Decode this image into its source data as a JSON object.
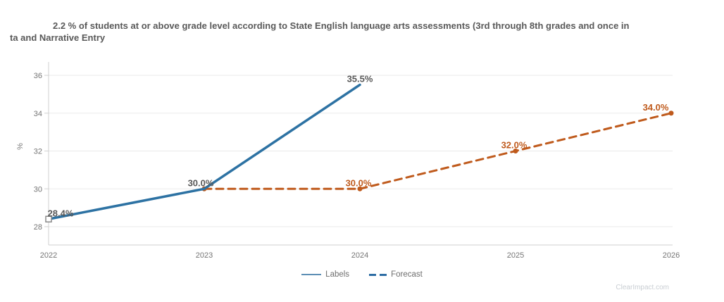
{
  "title": {
    "line1": "2.2 % of students at or above grade level according to State English language arts assessments (3rd through 8th grades and once in",
    "line2": "ta and Narrative Entry"
  },
  "watermark": "ClearImpact.com",
  "legend": [
    {
      "label": "Labels",
      "swatch_color": "#5d8fb5",
      "style": "solid"
    },
    {
      "label": "Forecast",
      "swatch_color": "#2e6da4",
      "style": "dashed"
    }
  ],
  "colors": {
    "labels_line": "#2d72a3",
    "forecast_line": "#bf5a1c",
    "gray_label": "#595959",
    "tick_text": "#757575",
    "gridline": "#eaeaea",
    "axis": "#cfcfcf",
    "marker_square_stroke": "#8a8a8a"
  },
  "chart_data": {
    "type": "line",
    "title": "2.2 % of students at or above grade level according to State English language arts assessments (3rd through 8th grades and once in ta and Narrative Entry",
    "xlabel": "",
    "ylabel": "%",
    "x": [
      2022,
      2023,
      2024,
      2025,
      2026
    ],
    "yticks": [
      28,
      30,
      32,
      34,
      36
    ],
    "ylim": [
      27,
      36.7
    ],
    "grid": true,
    "legend_position": "bottom",
    "series": [
      {
        "name": "Labels",
        "color": "#2d72a3",
        "style": "solid",
        "label_color": "#595959",
        "points": [
          {
            "x": 2022,
            "y": 28.4,
            "label": "28.4%",
            "marker": "square",
            "label_dx": 17
          },
          {
            "x": 2023,
            "y": 30.0,
            "label": "30.0%",
            "label_dx": -5
          },
          {
            "x": 2024,
            "y": 35.5,
            "label": "35.5%"
          }
        ]
      },
      {
        "name": "Forecast",
        "color": "#bf5a1c",
        "style": "dashed",
        "label_color": "#bf5a1c",
        "marker": "circle",
        "points": [
          {
            "x": 2023,
            "y": 30.0
          },
          {
            "x": 2024,
            "y": 30.0,
            "label": "30.0%",
            "label_dx": -2
          },
          {
            "x": 2025,
            "y": 32.0,
            "label": "32.0%",
            "label_dx": -2
          },
          {
            "x": 2026,
            "y": 34.0,
            "label": "34.0%",
            "label_dx": -22
          }
        ]
      }
    ]
  }
}
